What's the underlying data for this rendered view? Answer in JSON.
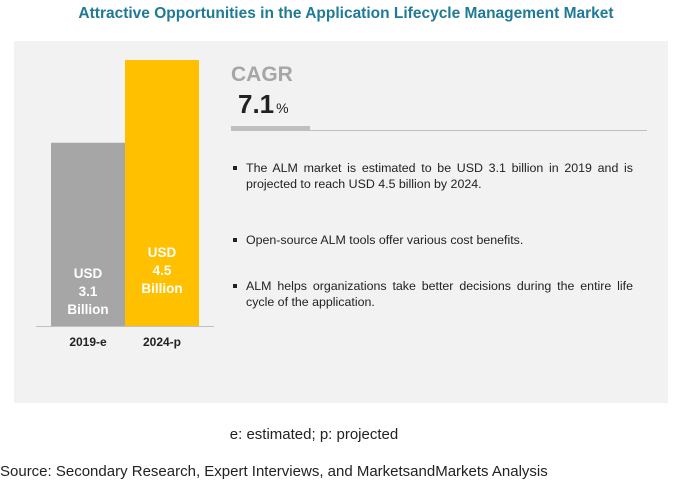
{
  "title": "Attractive Opportunities in the Application Lifecycle Management Market",
  "chart_data": {
    "type": "bar",
    "categories": [
      "2019-e",
      "2024-p"
    ],
    "values": [
      3.1,
      4.5
    ],
    "value_labels": [
      [
        "USD",
        "3.1",
        "Billion"
      ],
      [
        "USD",
        "4.5",
        "Billion"
      ]
    ],
    "colors": [
      "#a6a6a6",
      "#ffc000"
    ],
    "ylim": [
      0,
      4.5
    ],
    "grid": false
  },
  "cagr": {
    "label": "CAGR",
    "value": "7.1",
    "unit": "%"
  },
  "bullets": [
    "The ALM market is estimated to be USD 3.1 billion in 2019 and is projected to reach USD 4.5 billion by 2024.",
    "Open-source ALM tools offer various cost benefits.",
    "ALM helps organizations take better decisions during the entire life cycle of the application."
  ],
  "footnote": "e: estimated; p: projected",
  "source": "Source: Secondary Research, Expert Interviews, and MarketsandMarkets Analysis"
}
